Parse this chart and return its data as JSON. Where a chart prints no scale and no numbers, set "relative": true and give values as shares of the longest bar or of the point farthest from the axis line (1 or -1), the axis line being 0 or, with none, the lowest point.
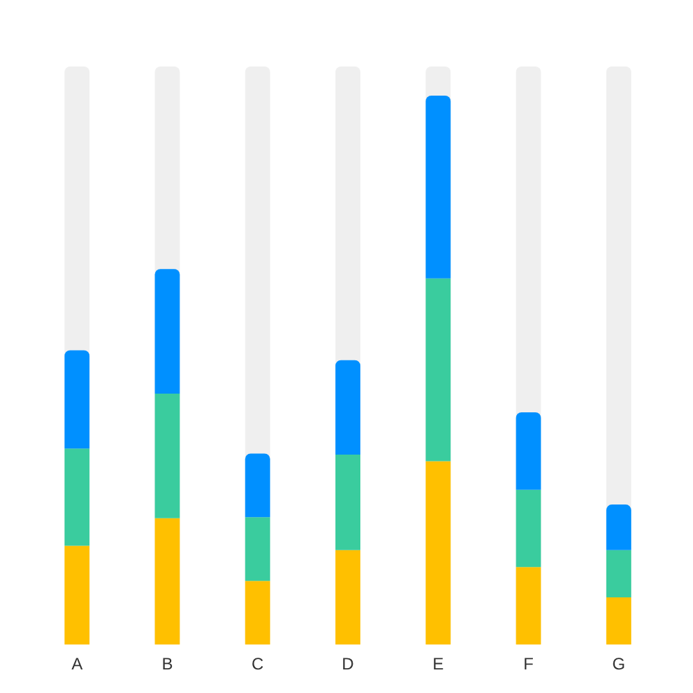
{
  "chart_data": {
    "type": "bar",
    "stacked": true,
    "relative": true,
    "grid": false,
    "categories": [
      "A",
      "B",
      "C",
      "D",
      "E",
      "F",
      "G"
    ],
    "series": [
      {
        "color": "#ffc000",
        "values": [
          0.18,
          0.23,
          0.116,
          0.172,
          0.334,
          0.141,
          0.086
        ]
      },
      {
        "color": "#3acc9e",
        "values": [
          0.177,
          0.227,
          0.116,
          0.174,
          0.333,
          0.141,
          0.086
        ]
      },
      {
        "color": "#0090ff",
        "values": [
          0.179,
          0.227,
          0.116,
          0.172,
          0.333,
          0.141,
          0.083
        ]
      }
    ]
  }
}
